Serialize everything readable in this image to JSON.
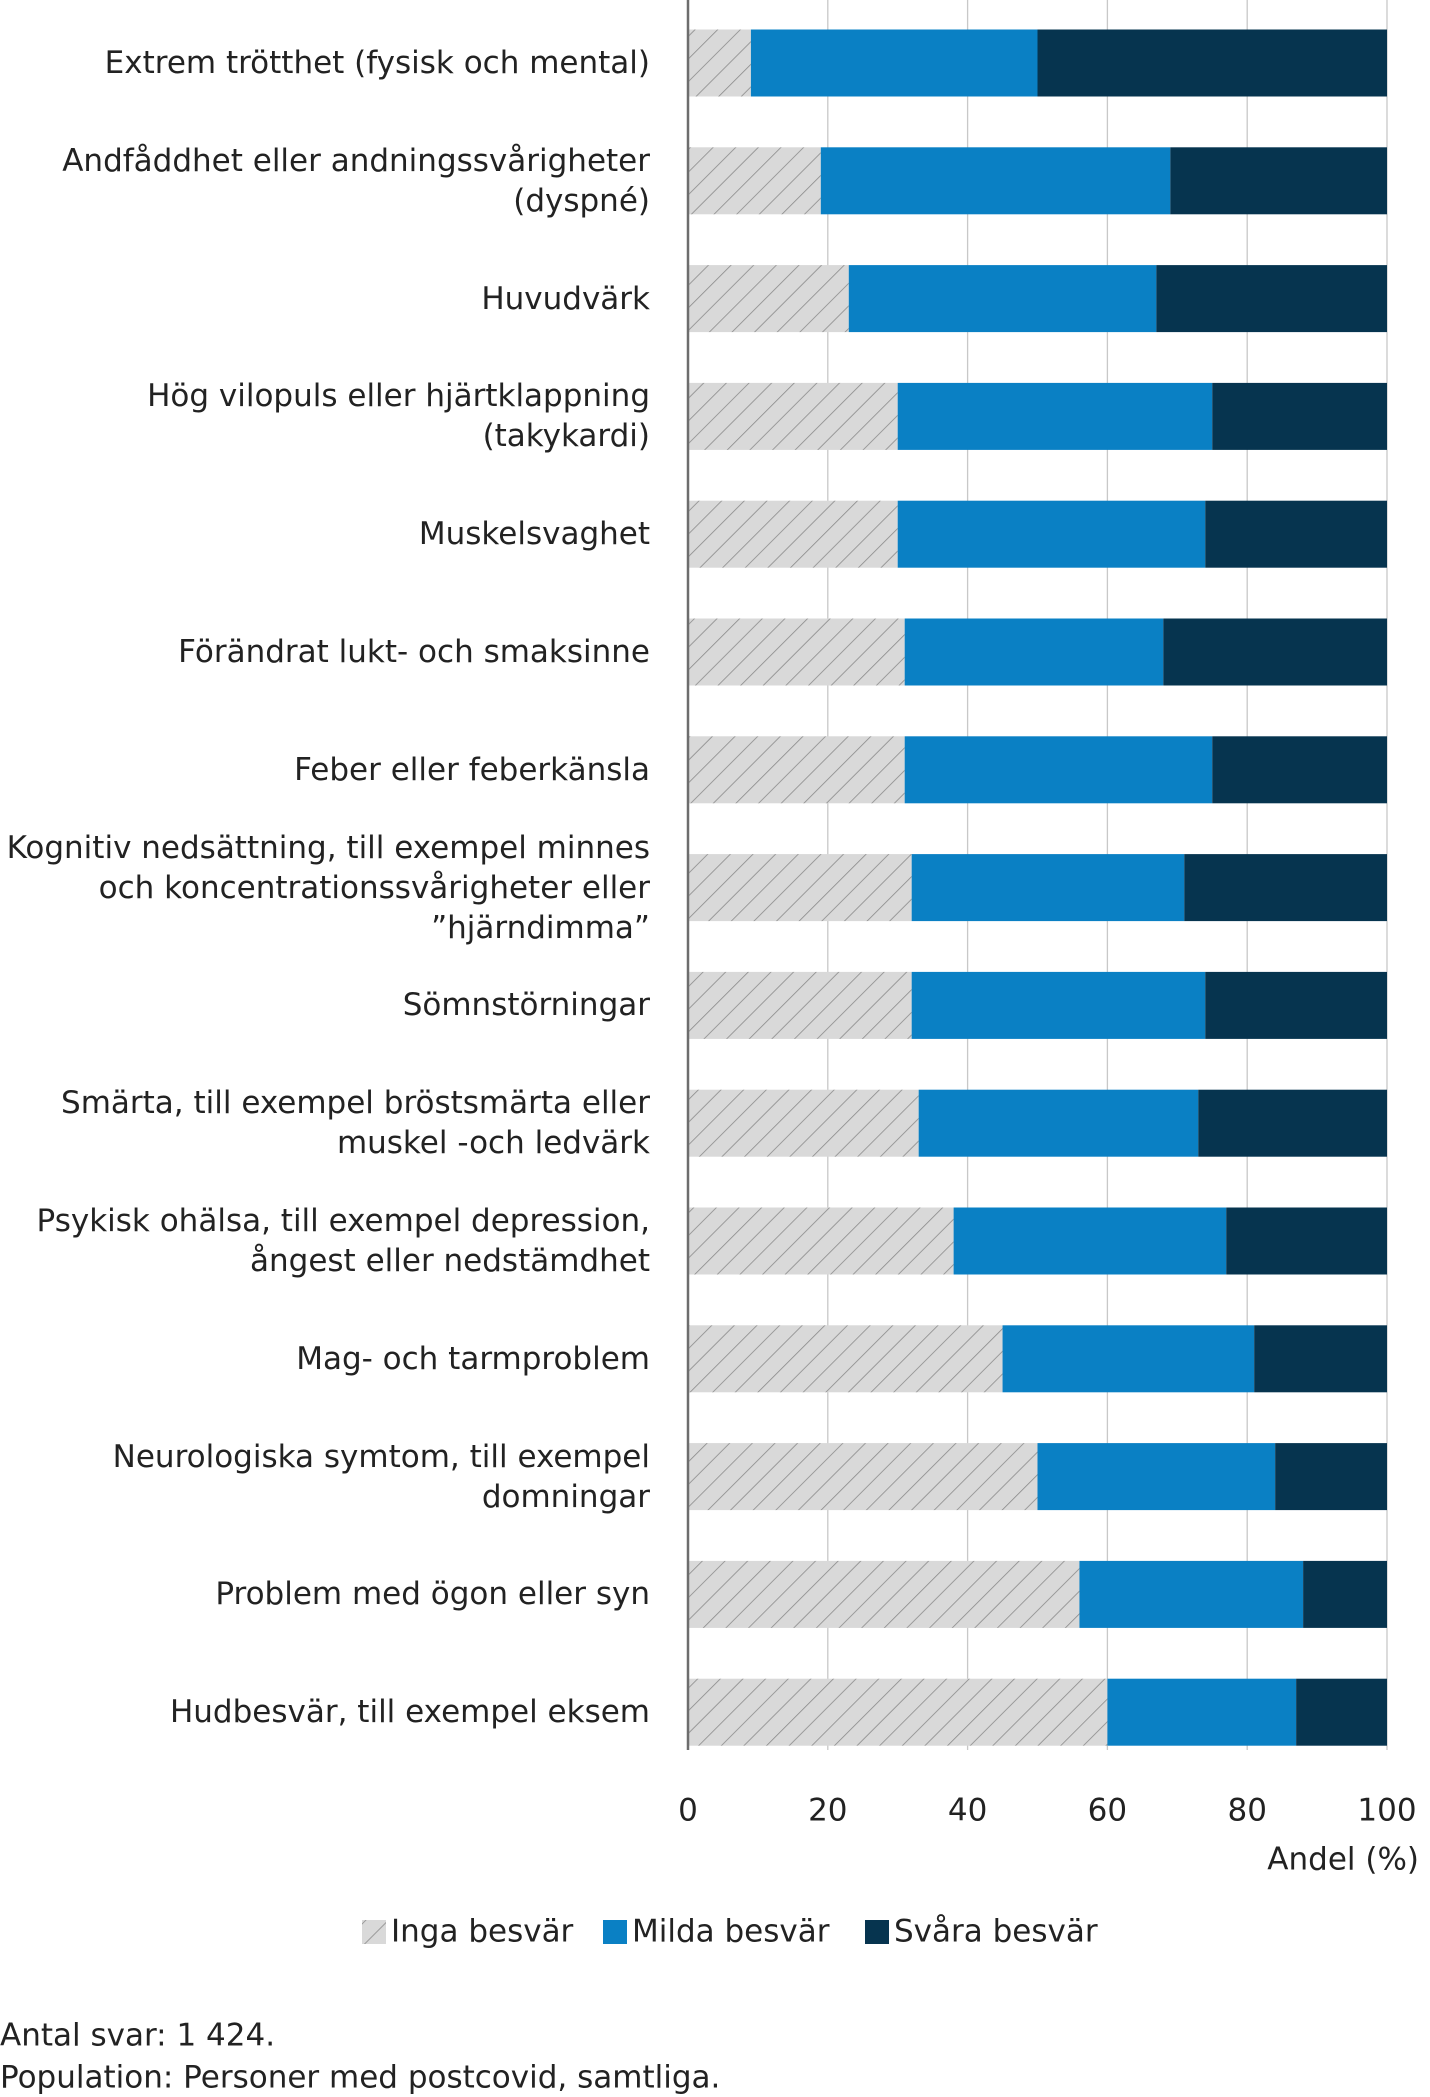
{
  "chart_data": {
    "type": "stacked-bar-horizontal",
    "categories": [
      "Extrem trötthet (fysisk och mental)",
      "Andfåddhet eller andningssvårigheter\n(dyspné)",
      "Huvudvärk",
      "Hög vilopuls eller hjärtklappning (takykardi)",
      "Muskelsvaghet",
      "Förändrat lukt- och smaksinne",
      "Feber eller feberkänsla",
      "Kognitiv nedsättning, till exempel minnes\noch koncentrationssvårigheter eller\n”hjärndimma”",
      "Sömnstörningar",
      "Smärta, till exempel bröstsmärta eller\nmuskel -och ledvärk",
      "Psykisk ohälsa, till exempel depression,\nångest eller nedstämdhet",
      "Mag- och tarmproblem",
      "Neurologiska symtom, till exempel\ndomningar",
      "Problem med ögon eller syn",
      "Hudbesvär, till exempel eksem"
    ],
    "series": [
      {
        "name": "Inga besvär",
        "color": "#d9d9d9",
        "hatch": true,
        "values": [
          9,
          19,
          23,
          30,
          30,
          31,
          31,
          32,
          32,
          33,
          38,
          45,
          50,
          56,
          60
        ]
      },
      {
        "name": "Milda besvär",
        "color": "#0a80c4",
        "values": [
          41,
          50,
          44,
          45,
          44,
          37,
          44,
          39,
          42,
          40,
          39,
          36,
          34,
          32,
          27
        ]
      },
      {
        "name": "Svåra besvär",
        "color": "#06344f",
        "values": [
          50,
          31,
          33,
          25,
          26,
          32,
          25,
          29,
          26,
          27,
          23,
          19,
          16,
          12,
          13
        ]
      }
    ],
    "xlim": [
      0,
      100
    ],
    "xticks": [
      0,
      20,
      40,
      60,
      80,
      100
    ],
    "grid": true,
    "xlabel": "Andel (%)",
    "notes": [
      "Antal svar: 1 424.",
      "Population: Personer med postcovid, samtliga."
    ]
  }
}
